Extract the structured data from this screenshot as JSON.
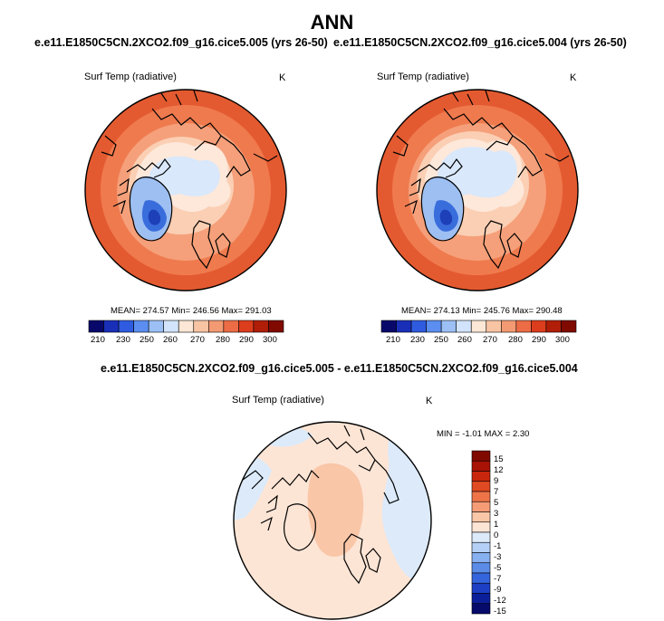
{
  "page": {
    "title": "ANN"
  },
  "chart_data": [
    {
      "type": "heatmap",
      "subtitle": "e.e11.E1850C5CN.2XCO2.f09_g16.cice5.005 (yrs 26-50)",
      "variable": "Surf Temp (radiative)",
      "units": "K",
      "projection": "polar stereographic (Arctic)",
      "stats": {
        "mean": 274.57,
        "min": 246.56,
        "max": 291.03
      },
      "stats_text": "MEAN= 274.57   Min= 246.56   Max= 291.03",
      "colorbar": {
        "orientation": "horizontal",
        "levels": [
          210,
          230,
          250,
          260,
          270,
          280,
          290,
          300
        ],
        "tick_labels": [
          "210",
          "230",
          "250",
          "260",
          "270",
          "280",
          "290",
          "300"
        ],
        "colors": [
          "#08086b",
          "#1a2fb8",
          "#2f5be0",
          "#5b8ef0",
          "#9cc0f5",
          "#d2e4fb",
          "#fde7d6",
          "#f8c4a3",
          "#f39a73",
          "#ec6c45",
          "#dc3d1c",
          "#b01e08",
          "#800a00"
        ]
      }
    },
    {
      "type": "heatmap",
      "subtitle": "e.e11.E1850C5CN.2XCO2.f09_g16.cice5.004 (yrs 26-50)",
      "variable": "Surf Temp (radiative)",
      "units": "K",
      "projection": "polar stereographic (Arctic)",
      "stats": {
        "mean": 274.13,
        "min": 245.76,
        "max": 290.48
      },
      "stats_text": "MEAN= 274.13   Min= 245.76   Max= 290.48",
      "colorbar": {
        "orientation": "horizontal",
        "levels": [
          210,
          230,
          250,
          260,
          270,
          280,
          290,
          300
        ],
        "tick_labels": [
          "210",
          "230",
          "250",
          "260",
          "270",
          "280",
          "290",
          "300"
        ],
        "colors": [
          "#08086b",
          "#1a2fb8",
          "#2f5be0",
          "#5b8ef0",
          "#9cc0f5",
          "#d2e4fb",
          "#fde7d6",
          "#f8c4a3",
          "#f39a73",
          "#ec6c45",
          "#dc3d1c",
          "#b01e08",
          "#800a00"
        ]
      }
    },
    {
      "type": "heatmap",
      "subtitle": "e.e11.E1850C5CN.2XCO2.f09_g16.cice5.005 - e.e11.E1850C5CN.2XCO2.f09_g16.cice5.004",
      "variable": "Surf Temp (radiative)",
      "units": "K",
      "projection": "polar stereographic (Arctic)",
      "stats": {
        "min": -1.01,
        "max": 2.3
      },
      "stats_text": "MIN =  -1.01  MAX =   2.30",
      "colorbar": {
        "orientation": "vertical",
        "levels": [
          15,
          12,
          9,
          7,
          5,
          3,
          1,
          0,
          -1,
          -3,
          -5,
          -7,
          -9,
          -12,
          -15
        ],
        "tick_labels": [
          "15",
          "12",
          "9",
          "7",
          "5",
          "3",
          "1",
          "0",
          "-1",
          "-3",
          "-5",
          "-7",
          "-9",
          "-12",
          "-15"
        ],
        "colors": [
          "#800a00",
          "#a81306",
          "#c8270d",
          "#e04a22",
          "#ee7448",
          "#f59c76",
          "#f9c6a8",
          "#fde5d5",
          "#dceafa",
          "#b5d0f6",
          "#87b0f0",
          "#5a8ce8",
          "#3565dc",
          "#1d3fc4",
          "#0c1f9a",
          "#050a6b"
        ]
      }
    }
  ]
}
